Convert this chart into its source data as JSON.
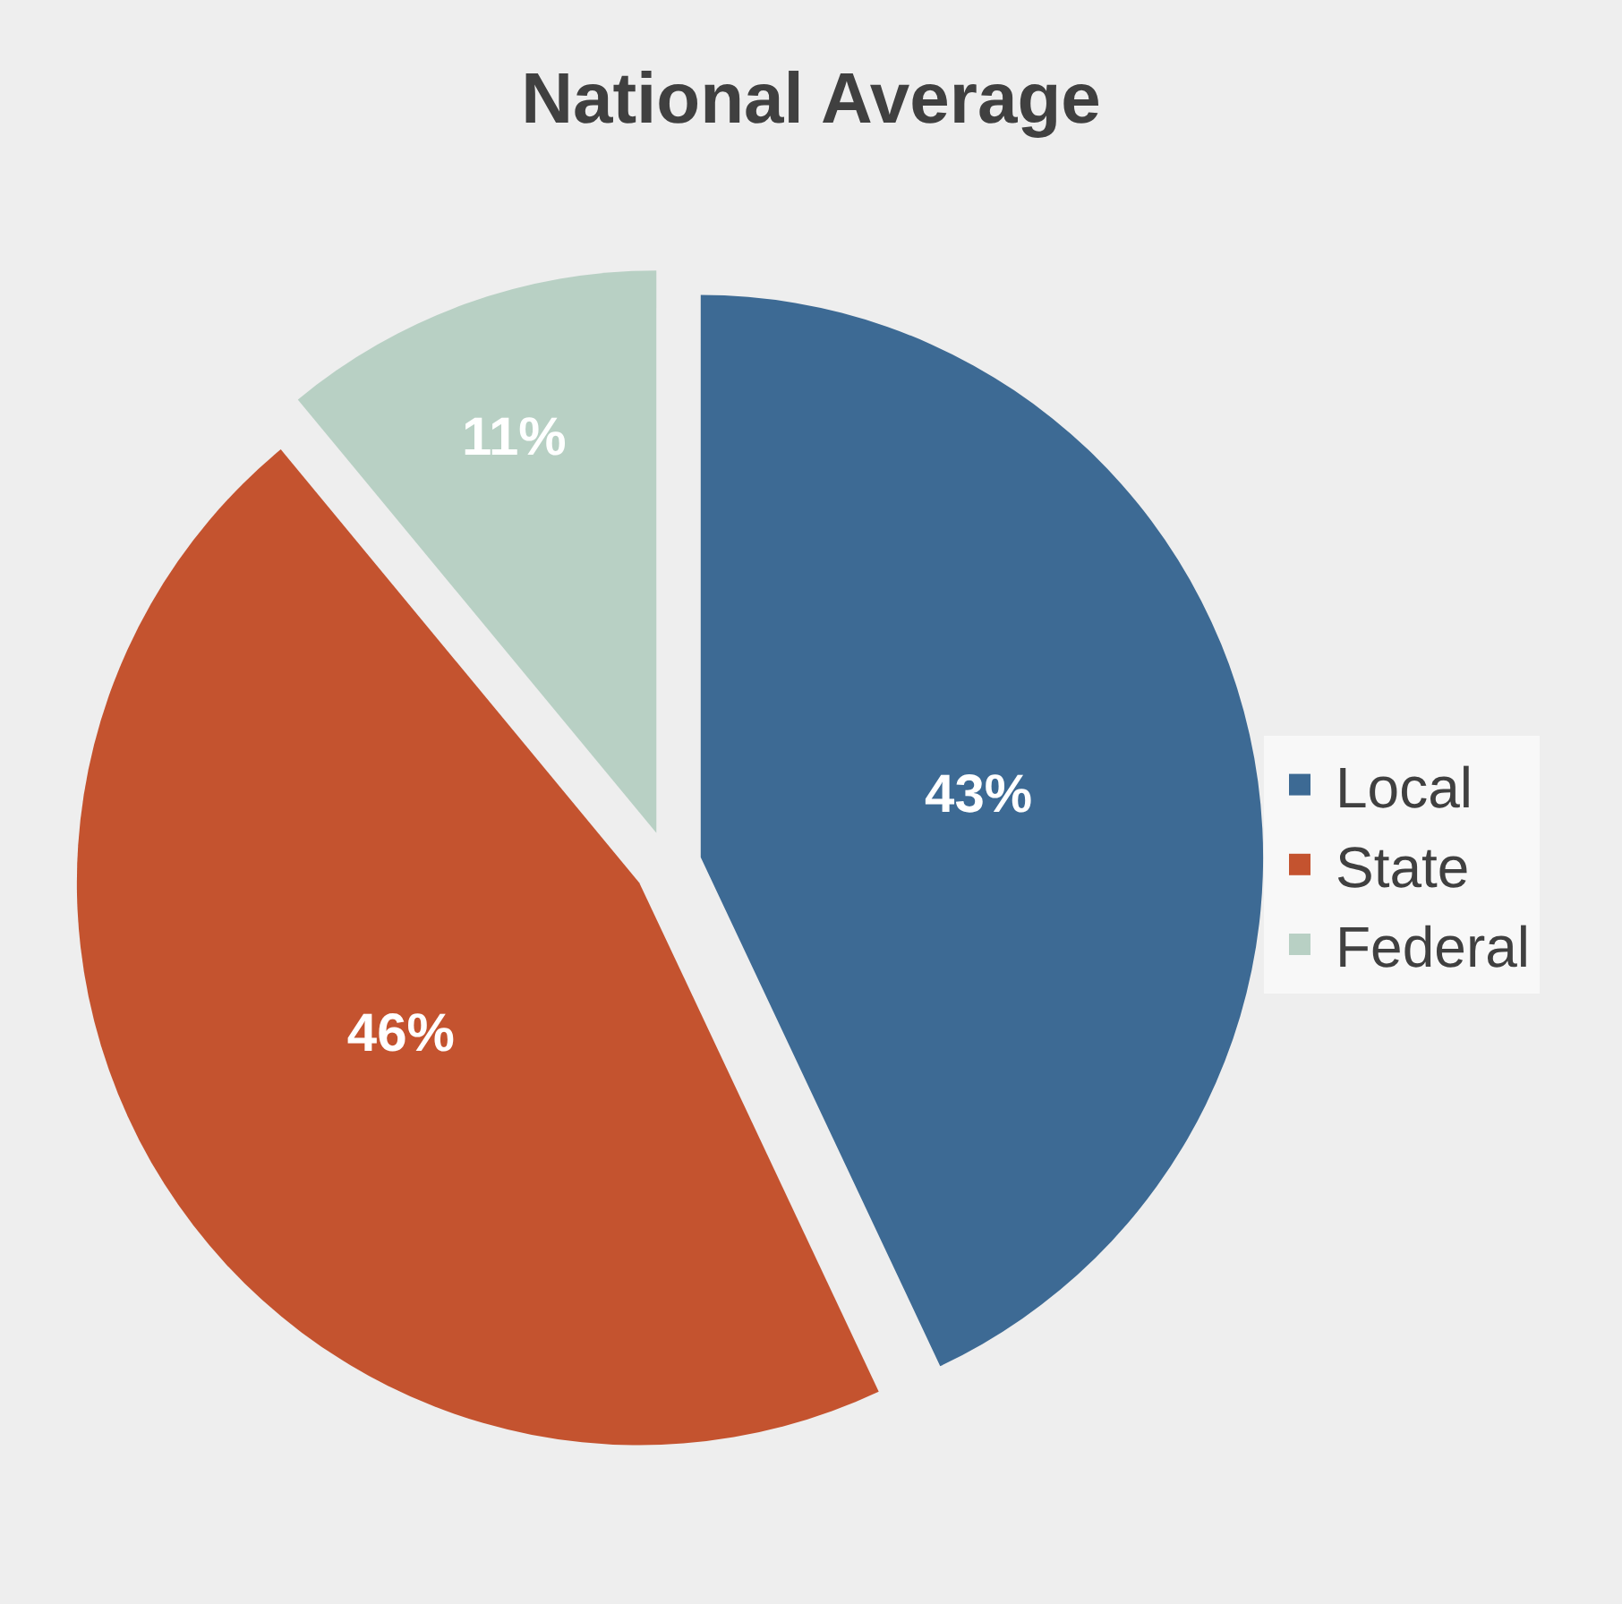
{
  "chart_data": {
    "type": "pie",
    "title": "National Average",
    "categories": [
      "Local",
      "State",
      "Federal"
    ],
    "values": [
      43,
      46,
      11
    ],
    "value_labels": [
      "43%",
      "46%",
      "11%"
    ],
    "colors": [
      "#3d6a94",
      "#c4532f",
      "#b8d0c4"
    ],
    "legend": "right"
  }
}
